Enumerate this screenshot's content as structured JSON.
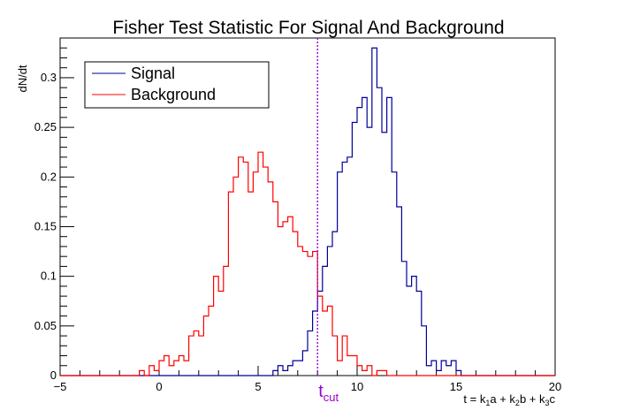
{
  "chart_data": {
    "type": "histogram",
    "title": "Fisher Test Statistic For Signal And Background",
    "ylabel": "dN/dt",
    "xlabel": {
      "parts": [
        "t = k",
        "1",
        "a + k",
        "2",
        "b + k",
        "3",
        "c"
      ]
    },
    "xlim": [
      -5,
      20
    ],
    "ylim": [
      0,
      0.34
    ],
    "x_major_ticks": [
      -5,
      0,
      5,
      10,
      15,
      20
    ],
    "x_tick_labels": [
      "−5",
      "0",
      "5",
      "10",
      "15",
      "20"
    ],
    "y_major_ticks": [
      0,
      0.05,
      0.1,
      0.15,
      0.2,
      0.25,
      0.3
    ],
    "y_tick_labels": [
      "0",
      "0.05",
      "0.1",
      "0.15",
      "0.2",
      "0.25",
      "0.3"
    ],
    "bin_edges_start": -5,
    "bin_width": 0.25,
    "grid": false,
    "legend_position": "top-left",
    "series": [
      {
        "name": "Signal",
        "color": "#000099",
        "bins": [
          [
            5.75,
            0.005
          ],
          [
            6.0,
            0.01
          ],
          [
            6.25,
            0.005
          ],
          [
            6.5,
            0.01
          ],
          [
            6.75,
            0.015
          ],
          [
            7.0,
            0.015
          ],
          [
            7.25,
            0.025
          ],
          [
            7.5,
            0.045
          ],
          [
            7.75,
            0.065
          ],
          [
            8.0,
            0.085
          ],
          [
            8.25,
            0.11
          ],
          [
            8.5,
            0.13
          ],
          [
            8.75,
            0.145
          ],
          [
            9.0,
            0.205
          ],
          [
            9.25,
            0.215
          ],
          [
            9.5,
            0.22
          ],
          [
            9.75,
            0.255
          ],
          [
            10.0,
            0.27
          ],
          [
            10.25,
            0.28
          ],
          [
            10.5,
            0.25
          ],
          [
            10.75,
            0.33
          ],
          [
            11.0,
            0.29
          ],
          [
            11.25,
            0.245
          ],
          [
            11.5,
            0.28
          ],
          [
            11.75,
            0.205
          ],
          [
            12.0,
            0.17
          ],
          [
            12.25,
            0.115
          ],
          [
            12.5,
            0.09
          ],
          [
            12.75,
            0.1
          ],
          [
            13.0,
            0.085
          ],
          [
            13.25,
            0.05
          ],
          [
            13.5,
            0.01
          ],
          [
            13.75,
            0.015
          ],
          [
            14.0,
            0.005
          ],
          [
            14.25,
            0.015
          ],
          [
            14.5,
            0.01
          ],
          [
            14.75,
            0.015
          ],
          [
            15.0,
            0.005
          ]
        ]
      },
      {
        "name": "Background",
        "color": "#ff0000",
        "bins": [
          [
            -1.0,
            0.005
          ],
          [
            -0.5,
            0.01
          ],
          [
            -0.25,
            0.005
          ],
          [
            0.0,
            0.015
          ],
          [
            0.25,
            0.02
          ],
          [
            0.5,
            0.01
          ],
          [
            0.75,
            0.015
          ],
          [
            1.0,
            0.02
          ],
          [
            1.25,
            0.015
          ],
          [
            1.5,
            0.04
          ],
          [
            1.75,
            0.045
          ],
          [
            2.0,
            0.04
          ],
          [
            2.25,
            0.06
          ],
          [
            2.5,
            0.07
          ],
          [
            2.75,
            0.1
          ],
          [
            3.0,
            0.085
          ],
          [
            3.25,
            0.11
          ],
          [
            3.5,
            0.185
          ],
          [
            3.75,
            0.2
          ],
          [
            4.0,
            0.22
          ],
          [
            4.25,
            0.215
          ],
          [
            4.5,
            0.185
          ],
          [
            4.75,
            0.205
          ],
          [
            5.0,
            0.225
          ],
          [
            5.25,
            0.21
          ],
          [
            5.5,
            0.195
          ],
          [
            5.75,
            0.175
          ],
          [
            6.0,
            0.15
          ],
          [
            6.25,
            0.155
          ],
          [
            6.5,
            0.16
          ],
          [
            6.75,
            0.145
          ],
          [
            7.0,
            0.13
          ],
          [
            7.25,
            0.125
          ],
          [
            7.5,
            0.12
          ],
          [
            7.75,
            0.125
          ],
          [
            8.0,
            0.08
          ],
          [
            8.25,
            0.065
          ],
          [
            8.5,
            0.07
          ],
          [
            8.75,
            0.04
          ],
          [
            9.0,
            0.015
          ],
          [
            9.25,
            0.04
          ],
          [
            9.5,
            0.02
          ],
          [
            9.75,
            0.02
          ],
          [
            10.0,
            0.01
          ],
          [
            10.25,
            0.005
          ],
          [
            10.5,
            0.01
          ],
          [
            11.0,
            0.005
          ],
          [
            11.25,
            0.005
          ]
        ]
      }
    ],
    "cut_line": {
      "x": 8.0,
      "label": "t",
      "label_sub": "cut",
      "color": "#9900cc"
    }
  }
}
